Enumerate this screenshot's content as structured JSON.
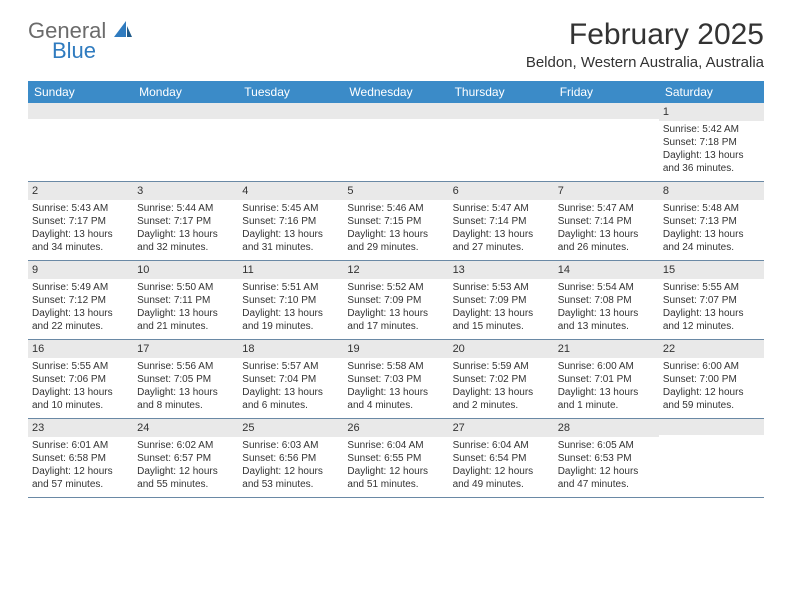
{
  "brand": {
    "line1": "General",
    "line2": "Blue"
  },
  "title": "February 2025",
  "location": "Beldon, Western Australia, Australia",
  "colors": {
    "header_bg": "#3b8bc8",
    "header_text": "#ffffff",
    "daynum_bg": "#e9e9e9",
    "row_border": "#6a89a5",
    "brand_gray": "#6b6b6b",
    "brand_blue": "#2f7bbf"
  },
  "weekdays": [
    "Sunday",
    "Monday",
    "Tuesday",
    "Wednesday",
    "Thursday",
    "Friday",
    "Saturday"
  ],
  "weeks": [
    [
      {
        "n": "",
        "sr": "",
        "ss": "",
        "dl": ""
      },
      {
        "n": "",
        "sr": "",
        "ss": "",
        "dl": ""
      },
      {
        "n": "",
        "sr": "",
        "ss": "",
        "dl": ""
      },
      {
        "n": "",
        "sr": "",
        "ss": "",
        "dl": ""
      },
      {
        "n": "",
        "sr": "",
        "ss": "",
        "dl": ""
      },
      {
        "n": "",
        "sr": "",
        "ss": "",
        "dl": ""
      },
      {
        "n": "1",
        "sr": "Sunrise: 5:42 AM",
        "ss": "Sunset: 7:18 PM",
        "dl": "Daylight: 13 hours and 36 minutes."
      }
    ],
    [
      {
        "n": "2",
        "sr": "Sunrise: 5:43 AM",
        "ss": "Sunset: 7:17 PM",
        "dl": "Daylight: 13 hours and 34 minutes."
      },
      {
        "n": "3",
        "sr": "Sunrise: 5:44 AM",
        "ss": "Sunset: 7:17 PM",
        "dl": "Daylight: 13 hours and 32 minutes."
      },
      {
        "n": "4",
        "sr": "Sunrise: 5:45 AM",
        "ss": "Sunset: 7:16 PM",
        "dl": "Daylight: 13 hours and 31 minutes."
      },
      {
        "n": "5",
        "sr": "Sunrise: 5:46 AM",
        "ss": "Sunset: 7:15 PM",
        "dl": "Daylight: 13 hours and 29 minutes."
      },
      {
        "n": "6",
        "sr": "Sunrise: 5:47 AM",
        "ss": "Sunset: 7:14 PM",
        "dl": "Daylight: 13 hours and 27 minutes."
      },
      {
        "n": "7",
        "sr": "Sunrise: 5:47 AM",
        "ss": "Sunset: 7:14 PM",
        "dl": "Daylight: 13 hours and 26 minutes."
      },
      {
        "n": "8",
        "sr": "Sunrise: 5:48 AM",
        "ss": "Sunset: 7:13 PM",
        "dl": "Daylight: 13 hours and 24 minutes."
      }
    ],
    [
      {
        "n": "9",
        "sr": "Sunrise: 5:49 AM",
        "ss": "Sunset: 7:12 PM",
        "dl": "Daylight: 13 hours and 22 minutes."
      },
      {
        "n": "10",
        "sr": "Sunrise: 5:50 AM",
        "ss": "Sunset: 7:11 PM",
        "dl": "Daylight: 13 hours and 21 minutes."
      },
      {
        "n": "11",
        "sr": "Sunrise: 5:51 AM",
        "ss": "Sunset: 7:10 PM",
        "dl": "Daylight: 13 hours and 19 minutes."
      },
      {
        "n": "12",
        "sr": "Sunrise: 5:52 AM",
        "ss": "Sunset: 7:09 PM",
        "dl": "Daylight: 13 hours and 17 minutes."
      },
      {
        "n": "13",
        "sr": "Sunrise: 5:53 AM",
        "ss": "Sunset: 7:09 PM",
        "dl": "Daylight: 13 hours and 15 minutes."
      },
      {
        "n": "14",
        "sr": "Sunrise: 5:54 AM",
        "ss": "Sunset: 7:08 PM",
        "dl": "Daylight: 13 hours and 13 minutes."
      },
      {
        "n": "15",
        "sr": "Sunrise: 5:55 AM",
        "ss": "Sunset: 7:07 PM",
        "dl": "Daylight: 13 hours and 12 minutes."
      }
    ],
    [
      {
        "n": "16",
        "sr": "Sunrise: 5:55 AM",
        "ss": "Sunset: 7:06 PM",
        "dl": "Daylight: 13 hours and 10 minutes."
      },
      {
        "n": "17",
        "sr": "Sunrise: 5:56 AM",
        "ss": "Sunset: 7:05 PM",
        "dl": "Daylight: 13 hours and 8 minutes."
      },
      {
        "n": "18",
        "sr": "Sunrise: 5:57 AM",
        "ss": "Sunset: 7:04 PM",
        "dl": "Daylight: 13 hours and 6 minutes."
      },
      {
        "n": "19",
        "sr": "Sunrise: 5:58 AM",
        "ss": "Sunset: 7:03 PM",
        "dl": "Daylight: 13 hours and 4 minutes."
      },
      {
        "n": "20",
        "sr": "Sunrise: 5:59 AM",
        "ss": "Sunset: 7:02 PM",
        "dl": "Daylight: 13 hours and 2 minutes."
      },
      {
        "n": "21",
        "sr": "Sunrise: 6:00 AM",
        "ss": "Sunset: 7:01 PM",
        "dl": "Daylight: 13 hours and 1 minute."
      },
      {
        "n": "22",
        "sr": "Sunrise: 6:00 AM",
        "ss": "Sunset: 7:00 PM",
        "dl": "Daylight: 12 hours and 59 minutes."
      }
    ],
    [
      {
        "n": "23",
        "sr": "Sunrise: 6:01 AM",
        "ss": "Sunset: 6:58 PM",
        "dl": "Daylight: 12 hours and 57 minutes."
      },
      {
        "n": "24",
        "sr": "Sunrise: 6:02 AM",
        "ss": "Sunset: 6:57 PM",
        "dl": "Daylight: 12 hours and 55 minutes."
      },
      {
        "n": "25",
        "sr": "Sunrise: 6:03 AM",
        "ss": "Sunset: 6:56 PM",
        "dl": "Daylight: 12 hours and 53 minutes."
      },
      {
        "n": "26",
        "sr": "Sunrise: 6:04 AM",
        "ss": "Sunset: 6:55 PM",
        "dl": "Daylight: 12 hours and 51 minutes."
      },
      {
        "n": "27",
        "sr": "Sunrise: 6:04 AM",
        "ss": "Sunset: 6:54 PM",
        "dl": "Daylight: 12 hours and 49 minutes."
      },
      {
        "n": "28",
        "sr": "Sunrise: 6:05 AM",
        "ss": "Sunset: 6:53 PM",
        "dl": "Daylight: 12 hours and 47 minutes."
      },
      {
        "n": "",
        "sr": "",
        "ss": "",
        "dl": ""
      }
    ]
  ]
}
